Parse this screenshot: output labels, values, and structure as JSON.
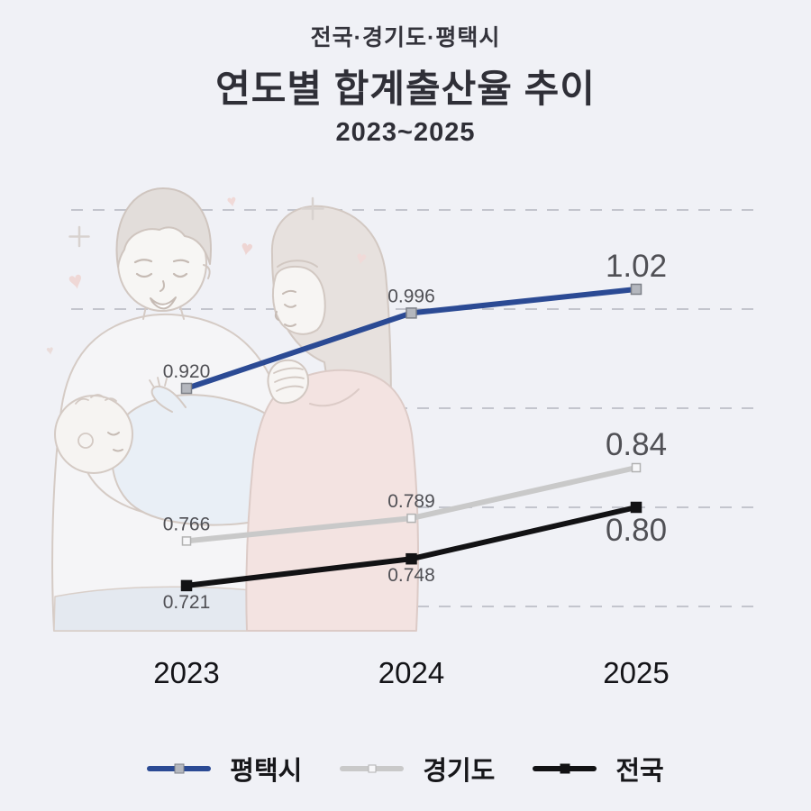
{
  "header": {
    "region_line": "전국·경기도·평택시",
    "title": "연도별 합계출산율 추이",
    "period": "2023~2025"
  },
  "colors": {
    "background": "#f0f1f6",
    "gridline": "#c3c5cd",
    "value_label": "#505055",
    "axis_label": "#141418",
    "legend_label": "#17171a",
    "title_text": "#2f2f37"
  },
  "chart_data": {
    "type": "line",
    "title": "연도별 합계출산율 추이",
    "subtitle": "전국·경기도·평택시",
    "period": "2023~2025",
    "categories": [
      "2023",
      "2024",
      "2025"
    ],
    "series": [
      {
        "name": "평택시",
        "values": [
          0.92,
          0.996,
          1.02
        ],
        "labels": [
          "0.920",
          "0.996",
          "1.02"
        ],
        "label_positions": [
          "above",
          "above",
          "above"
        ],
        "label_sizes": [
          "small",
          "small",
          "large"
        ],
        "color": "#2b4a94",
        "marker_fill": "#b4b7be",
        "marker_stroke": "#7d8088",
        "marker_size": 11
      },
      {
        "name": "경기도",
        "values": [
          0.766,
          0.789,
          0.84
        ],
        "labels": [
          "0.766",
          "0.789",
          "0.84"
        ],
        "label_positions": [
          "above",
          "above",
          "above"
        ],
        "label_sizes": [
          "small",
          "small",
          "large"
        ],
        "color": "#c9c9c9",
        "marker_fill": "#f7f7f9",
        "marker_stroke": "#b2b2b2",
        "marker_size": 9
      },
      {
        "name": "전국",
        "values": [
          0.721,
          0.748,
          0.8
        ],
        "labels": [
          "0.721",
          "0.748",
          "0.80"
        ],
        "label_positions": [
          "below",
          "below",
          "below"
        ],
        "label_sizes": [
          "small",
          "small",
          "large"
        ],
        "color": "#121214",
        "marker_fill": "#121214",
        "marker_stroke": "#121214",
        "marker_size": 11
      }
    ],
    "ylim": [
      0.65,
      1.15
    ],
    "gridlines": [
      0.7,
      0.8,
      0.9,
      1.0,
      1.1
    ],
    "grid_style": "dashed",
    "legend_position": "bottom",
    "xlabel": "",
    "ylabel": ""
  }
}
